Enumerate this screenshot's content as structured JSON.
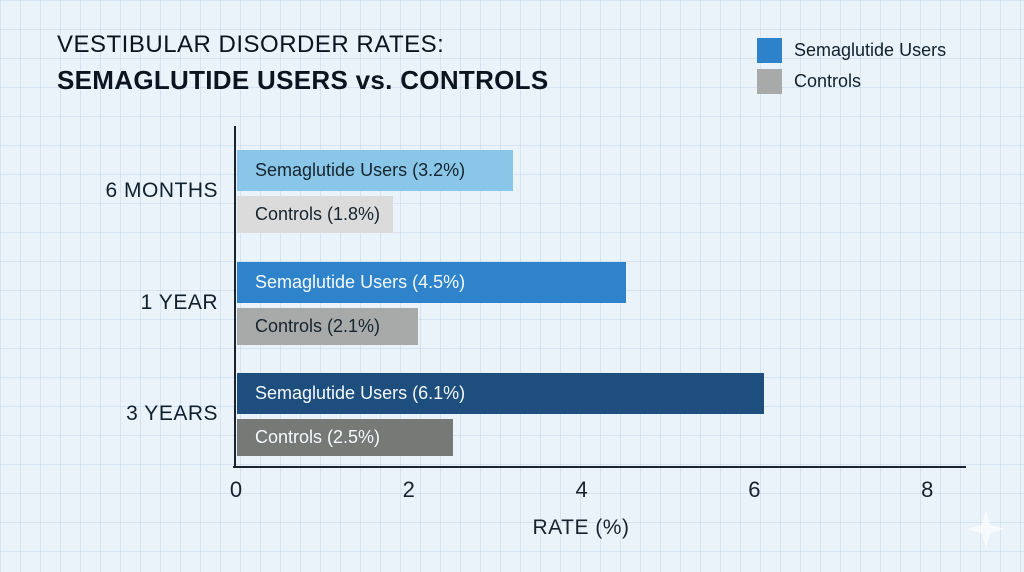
{
  "title": {
    "line1": "VESTIBULAR DISORDER RATES:",
    "line2": "SEMAGLUTIDE USERS vs. CONTROLS"
  },
  "legend": {
    "items": [
      {
        "label": "Semaglutide Users",
        "color": "#2e82ca"
      },
      {
        "label": "Controls",
        "color": "#a8aaa9"
      }
    ]
  },
  "chart_data": {
    "type": "bar",
    "orientation": "horizontal",
    "title": "VESTIBULAR DISORDER RATES: SEMAGLUTIDE USERS vs. CONTROLS",
    "categories": [
      "6 MONTHS",
      "1 YEAR",
      "3 YEARS"
    ],
    "series": [
      {
        "name": "Semaglutide Users",
        "values": [
          3.2,
          4.5,
          6.1
        ],
        "bar_labels": [
          "Semaglutide Users (3.2%)",
          "Semaglutide Users (4.5%)",
          "Semaglutide Users (6.1%)"
        ],
        "bar_colors": [
          "#8ac6e8",
          "#2f83ca",
          "#1d4e7d"
        ],
        "label_colors": [
          "#15242e",
          "#f4f9fd",
          "#f4f9fd"
        ]
      },
      {
        "name": "Controls",
        "values": [
          1.8,
          2.1,
          2.5
        ],
        "bar_labels": [
          "Controls (1.8%)",
          "Controls (2.1%)",
          "Controls (2.5%)"
        ],
        "bar_colors": [
          "#dbdbdb",
          "#a8aaa9",
          "#777977"
        ],
        "label_colors": [
          "#15242e",
          "#15242e",
          "#f4f9fd"
        ]
      }
    ],
    "xlabel": "RATE (%)",
    "x_ticks": [
      "0",
      "2",
      "4",
      "6",
      "8"
    ],
    "x_tick_values": [
      0,
      2,
      4,
      6,
      8
    ],
    "xlim": [
      0,
      8.45
    ],
    "grid": true,
    "legend_position": "top-right",
    "background_color": "#eaf2fa"
  },
  "watermark": {
    "icon": "four-point-star"
  }
}
